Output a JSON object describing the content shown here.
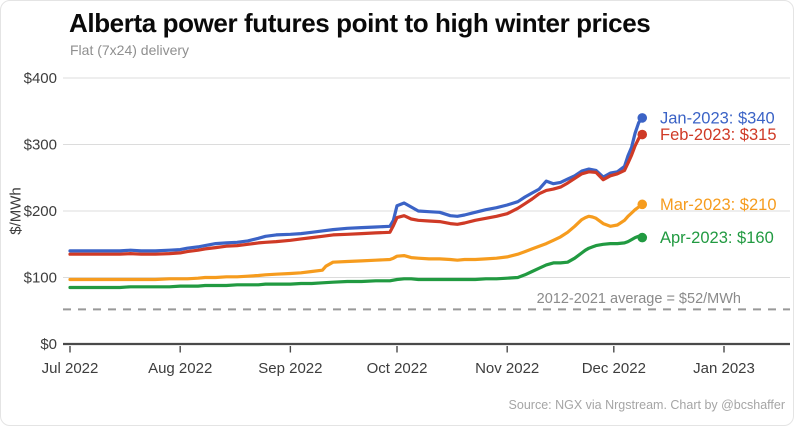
{
  "header": {
    "title": "Alberta power futures point to high winter prices",
    "subtitle": "Flat (7x24) delivery"
  },
  "footer": {
    "source": "Source: NGX via Nrgstream. Chart by @bcshaffer"
  },
  "chart_data": {
    "type": "line",
    "title": "Alberta power futures point to high winter prices",
    "subtitle": "Flat (7x24) delivery",
    "ylabel": "$/MWh",
    "ylim": [
      0,
      400
    ],
    "grid": true,
    "legend_position": "direct-labels-right",
    "ytick_values": [
      0,
      100,
      200,
      300,
      400
    ],
    "ytick_labels": [
      "$0",
      "$100",
      "$200",
      "$300",
      "$400"
    ],
    "xtick_labels": [
      "Jul 2022",
      "Aug 2022",
      "Sep 2022",
      "Oct 2022",
      "Nov 2022",
      "Dec 2022",
      "Jan 2023"
    ],
    "xtick_day_offsets": [
      0,
      31,
      62,
      92,
      123,
      153,
      184
    ],
    "x_unit": "days since Jul 1 2022",
    "average_line": {
      "value": 52,
      "label": "2012-2021 average = $52/MWh",
      "color": "#999999"
    },
    "series": [
      {
        "name": "Jan-2023",
        "label": "Jan-2023: $340",
        "end_value": 340,
        "color": "#3b63c6",
        "points": [
          [
            0,
            140
          ],
          [
            8,
            140
          ],
          [
            14,
            140
          ],
          [
            17,
            141
          ],
          [
            20,
            140
          ],
          [
            24,
            140
          ],
          [
            28,
            141
          ],
          [
            31,
            142
          ],
          [
            33,
            144
          ],
          [
            36,
            146
          ],
          [
            38,
            148
          ],
          [
            41,
            151
          ],
          [
            44,
            152
          ],
          [
            47,
            153
          ],
          [
            50,
            155
          ],
          [
            53,
            159
          ],
          [
            55,
            162
          ],
          [
            58,
            164
          ],
          [
            62,
            165
          ],
          [
            65,
            166
          ],
          [
            68,
            168
          ],
          [
            71,
            170
          ],
          [
            74,
            172
          ],
          [
            78,
            174
          ],
          [
            82,
            175
          ],
          [
            86,
            176
          ],
          [
            90,
            177
          ],
          [
            91,
            186
          ],
          [
            92,
            208
          ],
          [
            94,
            212
          ],
          [
            96,
            206
          ],
          [
            98,
            200
          ],
          [
            101,
            199
          ],
          [
            104,
            198
          ],
          [
            107,
            193
          ],
          [
            109,
            192
          ],
          [
            111,
            194
          ],
          [
            114,
            198
          ],
          [
            117,
            202
          ],
          [
            120,
            205
          ],
          [
            123,
            209
          ],
          [
            126,
            214
          ],
          [
            128,
            221
          ],
          [
            130,
            227
          ],
          [
            132,
            233
          ],
          [
            134,
            245
          ],
          [
            136,
            241
          ],
          [
            138,
            243
          ],
          [
            140,
            248
          ],
          [
            142,
            253
          ],
          [
            144,
            260
          ],
          [
            146,
            263
          ],
          [
            148,
            261
          ],
          [
            150,
            251
          ],
          [
            152,
            257
          ],
          [
            154,
            259
          ],
          [
            156,
            267
          ],
          [
            157,
            283
          ],
          [
            158,
            296
          ],
          [
            159,
            317
          ],
          [
            160,
            333
          ],
          [
            161,
            340
          ]
        ]
      },
      {
        "name": "Feb-2023",
        "label": "Feb-2023: $315",
        "end_value": 315,
        "color": "#cf3a26",
        "points": [
          [
            0,
            135
          ],
          [
            8,
            135
          ],
          [
            14,
            135
          ],
          [
            17,
            136
          ],
          [
            20,
            135
          ],
          [
            24,
            135
          ],
          [
            28,
            136
          ],
          [
            31,
            137
          ],
          [
            33,
            139
          ],
          [
            36,
            141
          ],
          [
            38,
            143
          ],
          [
            41,
            145
          ],
          [
            44,
            147
          ],
          [
            47,
            148
          ],
          [
            50,
            150
          ],
          [
            53,
            152
          ],
          [
            55,
            153
          ],
          [
            58,
            154
          ],
          [
            62,
            156
          ],
          [
            65,
            158
          ],
          [
            68,
            160
          ],
          [
            71,
            162
          ],
          [
            74,
            164
          ],
          [
            78,
            165
          ],
          [
            82,
            166
          ],
          [
            86,
            167
          ],
          [
            90,
            168
          ],
          [
            91,
            178
          ],
          [
            92,
            190
          ],
          [
            94,
            193
          ],
          [
            96,
            188
          ],
          [
            98,
            186
          ],
          [
            101,
            185
          ],
          [
            104,
            184
          ],
          [
            107,
            181
          ],
          [
            109,
            180
          ],
          [
            111,
            182
          ],
          [
            114,
            186
          ],
          [
            117,
            189
          ],
          [
            120,
            192
          ],
          [
            123,
            196
          ],
          [
            126,
            204
          ],
          [
            128,
            211
          ],
          [
            130,
            218
          ],
          [
            132,
            226
          ],
          [
            134,
            231
          ],
          [
            136,
            233
          ],
          [
            138,
            236
          ],
          [
            140,
            242
          ],
          [
            142,
            249
          ],
          [
            144,
            256
          ],
          [
            146,
            259
          ],
          [
            148,
            258
          ],
          [
            150,
            247
          ],
          [
            152,
            253
          ],
          [
            154,
            256
          ],
          [
            156,
            261
          ],
          [
            157,
            272
          ],
          [
            158,
            284
          ],
          [
            159,
            298
          ],
          [
            160,
            309
          ],
          [
            161,
            315
          ]
        ]
      },
      {
        "name": "Mar-2023",
        "label": "Mar-2023: $210",
        "end_value": 210,
        "color": "#f69c1e",
        "points": [
          [
            0,
            97
          ],
          [
            8,
            97
          ],
          [
            14,
            97
          ],
          [
            17,
            97
          ],
          [
            20,
            97
          ],
          [
            24,
            97
          ],
          [
            28,
            98
          ],
          [
            31,
            98
          ],
          [
            33,
            98
          ],
          [
            36,
            99
          ],
          [
            38,
            100
          ],
          [
            41,
            100
          ],
          [
            44,
            101
          ],
          [
            47,
            101
          ],
          [
            50,
            102
          ],
          [
            53,
            103
          ],
          [
            55,
            104
          ],
          [
            58,
            105
          ],
          [
            62,
            106
          ],
          [
            65,
            107
          ],
          [
            68,
            109
          ],
          [
            71,
            111
          ],
          [
            72,
            117
          ],
          [
            74,
            123
          ],
          [
            78,
            124
          ],
          [
            82,
            125
          ],
          [
            86,
            126
          ],
          [
            90,
            127
          ],
          [
            91,
            129
          ],
          [
            92,
            132
          ],
          [
            94,
            133
          ],
          [
            96,
            130
          ],
          [
            98,
            129
          ],
          [
            101,
            128
          ],
          [
            104,
            128
          ],
          [
            107,
            127
          ],
          [
            109,
            126
          ],
          [
            111,
            127
          ],
          [
            114,
            127
          ],
          [
            117,
            128
          ],
          [
            120,
            129
          ],
          [
            123,
            131
          ],
          [
            126,
            135
          ],
          [
            128,
            139
          ],
          [
            130,
            143
          ],
          [
            132,
            147
          ],
          [
            134,
            151
          ],
          [
            136,
            156
          ],
          [
            138,
            161
          ],
          [
            140,
            168
          ],
          [
            142,
            177
          ],
          [
            144,
            187
          ],
          [
            145,
            190
          ],
          [
            146,
            192
          ],
          [
            147,
            191
          ],
          [
            148,
            189
          ],
          [
            150,
            181
          ],
          [
            152,
            177
          ],
          [
            154,
            179
          ],
          [
            156,
            186
          ],
          [
            157,
            192
          ],
          [
            158,
            197
          ],
          [
            159,
            202
          ],
          [
            160,
            206
          ],
          [
            161,
            210
          ]
        ]
      },
      {
        "name": "Apr-2023",
        "label": "Apr-2023: $160",
        "end_value": 160,
        "color": "#219a41",
        "points": [
          [
            0,
            85
          ],
          [
            8,
            85
          ],
          [
            14,
            85
          ],
          [
            17,
            86
          ],
          [
            20,
            86
          ],
          [
            24,
            86
          ],
          [
            28,
            86
          ],
          [
            31,
            87
          ],
          [
            33,
            87
          ],
          [
            36,
            87
          ],
          [
            38,
            88
          ],
          [
            41,
            88
          ],
          [
            44,
            88
          ],
          [
            47,
            89
          ],
          [
            50,
            89
          ],
          [
            53,
            89
          ],
          [
            55,
            90
          ],
          [
            58,
            90
          ],
          [
            62,
            90
          ],
          [
            65,
            91
          ],
          [
            68,
            91
          ],
          [
            71,
            92
          ],
          [
            74,
            93
          ],
          [
            78,
            94
          ],
          [
            82,
            94
          ],
          [
            86,
            95
          ],
          [
            90,
            95
          ],
          [
            92,
            97
          ],
          [
            94,
            98
          ],
          [
            96,
            98
          ],
          [
            98,
            97
          ],
          [
            101,
            97
          ],
          [
            104,
            97
          ],
          [
            107,
            97
          ],
          [
            109,
            97
          ],
          [
            111,
            97
          ],
          [
            114,
            97
          ],
          [
            117,
            98
          ],
          [
            120,
            98
          ],
          [
            123,
            99
          ],
          [
            126,
            100
          ],
          [
            128,
            104
          ],
          [
            130,
            109
          ],
          [
            132,
            114
          ],
          [
            134,
            119
          ],
          [
            136,
            122
          ],
          [
            138,
            122
          ],
          [
            140,
            123
          ],
          [
            142,
            129
          ],
          [
            144,
            137
          ],
          [
            145,
            141
          ],
          [
            146,
            144
          ],
          [
            147,
            146
          ],
          [
            148,
            148
          ],
          [
            150,
            150
          ],
          [
            152,
            151
          ],
          [
            154,
            151
          ],
          [
            156,
            152
          ],
          [
            157,
            154
          ],
          [
            158,
            157
          ],
          [
            159,
            160
          ],
          [
            160,
            162
          ],
          [
            161,
            160
          ]
        ]
      }
    ]
  }
}
